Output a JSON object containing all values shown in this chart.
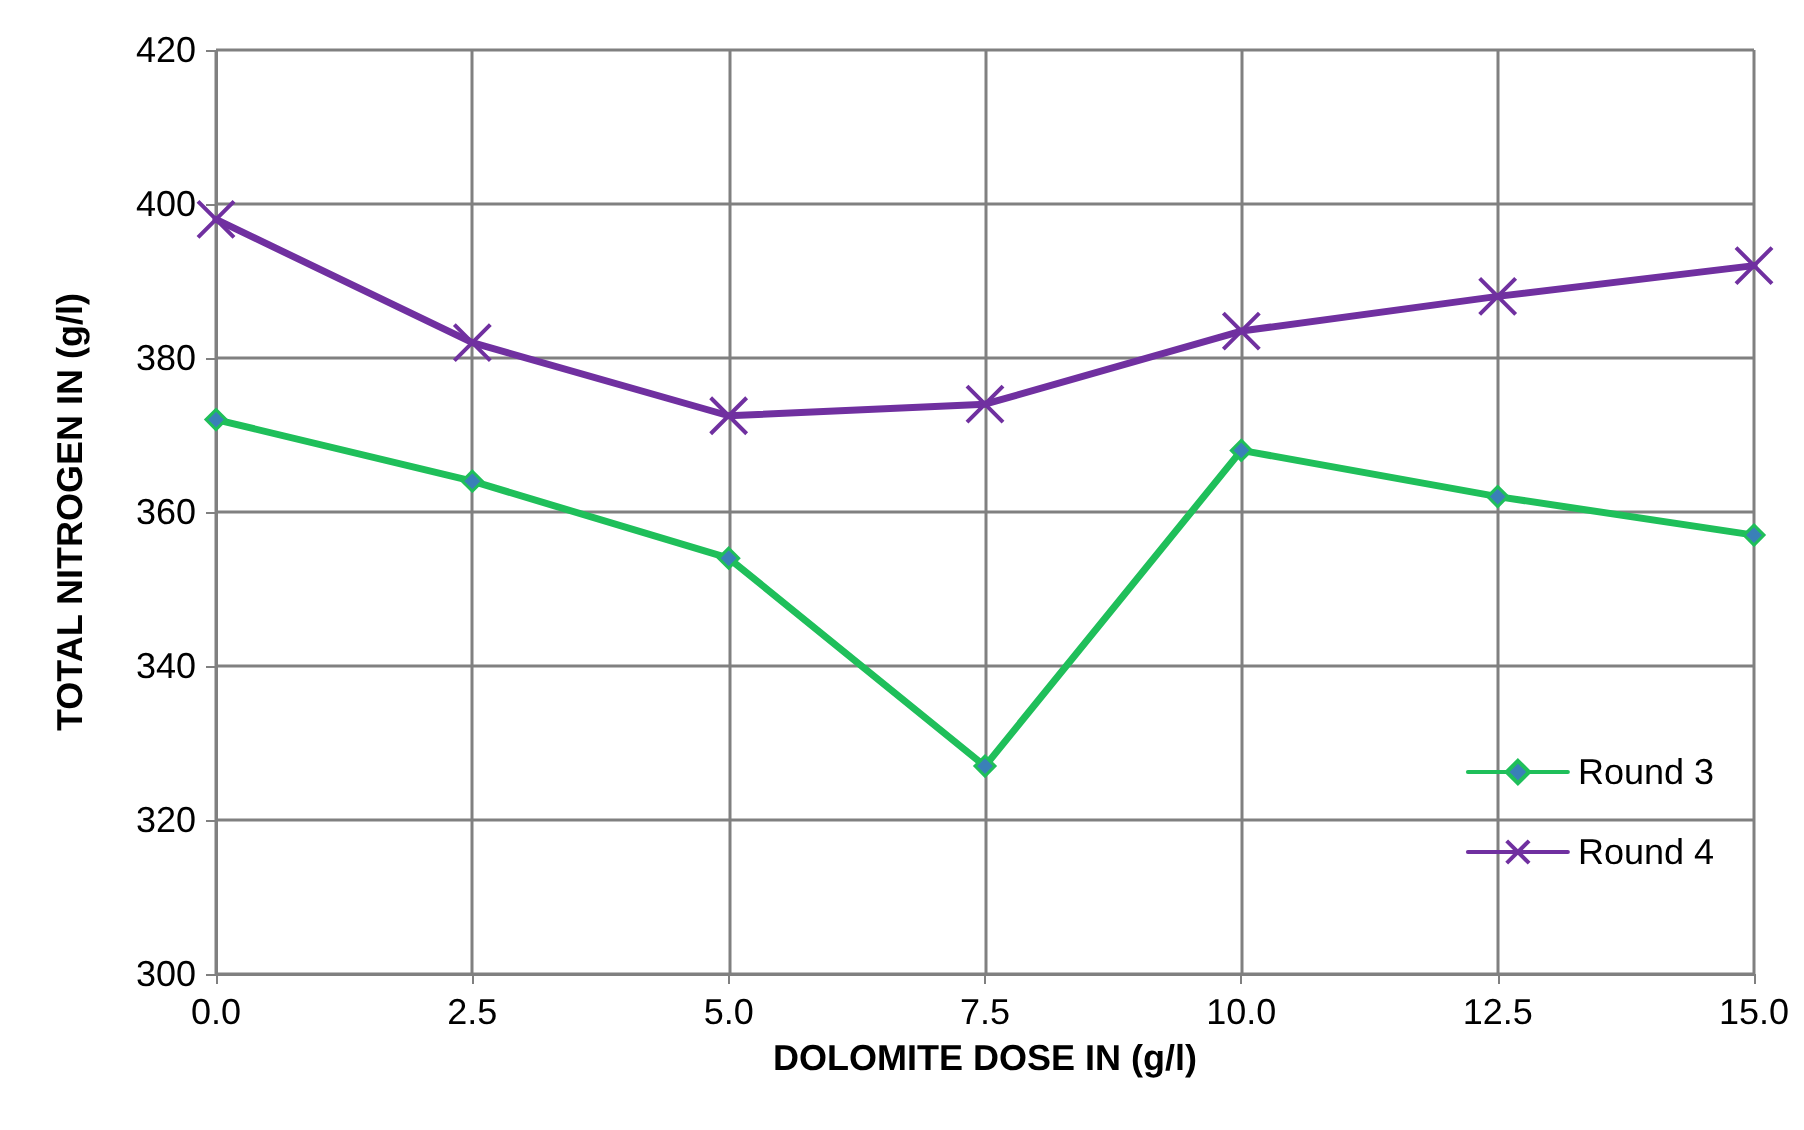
{
  "chart_data": {
    "type": "line",
    "xlabel": "DOLOMITE DOSE IN (g/l)",
    "ylabel": "TOTAL NITROGEN IN (g/l)",
    "x": [
      0,
      2.5,
      5,
      7.5,
      10,
      12.5,
      15
    ],
    "series": [
      {
        "name": "Round 3",
        "color": "#1fbf5a",
        "marker": "diamond",
        "values": [
          372,
          364,
          354,
          327,
          368,
          362,
          357
        ]
      },
      {
        "name": "Round 4",
        "color": "#7030a0",
        "marker": "cross",
        "values": [
          398,
          382,
          372.5,
          374,
          383.5,
          388,
          392
        ]
      }
    ],
    "xlim": [
      0,
      15
    ],
    "xticks": [
      {
        "value": 0,
        "label": "0.0"
      },
      {
        "value": 2.5,
        "label": "2.5"
      },
      {
        "value": 5,
        "label": "5.0"
      },
      {
        "value": 7.5,
        "label": "7.5"
      },
      {
        "value": 10,
        "label": "10.0"
      },
      {
        "value": 12.5,
        "label": "12.5"
      },
      {
        "value": 15,
        "label": "15.0"
      }
    ],
    "ylim": [
      300,
      420
    ],
    "yticks": [
      300,
      320,
      340,
      360,
      380,
      400,
      420
    ],
    "grid": true,
    "legend": "bottom right",
    "line_style": "solid"
  }
}
